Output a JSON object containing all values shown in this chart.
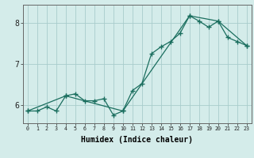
{
  "title": "",
  "xlabel": "Humidex (Indice chaleur)",
  "ylabel": "",
  "bg_color": "#d4ecea",
  "grid_color": "#a8cccc",
  "line_color": "#1a6e5e",
  "xlim": [
    -0.5,
    23.5
  ],
  "ylim": [
    5.55,
    8.45
  ],
  "yticks": [
    6,
    7,
    8
  ],
  "xticks": [
    0,
    1,
    2,
    3,
    4,
    5,
    6,
    7,
    8,
    9,
    10,
    11,
    12,
    13,
    14,
    15,
    16,
    17,
    18,
    19,
    20,
    21,
    22,
    23
  ],
  "series1_x": [
    0,
    1,
    2,
    3,
    4,
    5,
    6,
    7,
    8,
    9,
    10,
    11,
    12,
    13,
    14,
    15,
    16,
    17,
    18,
    19,
    20,
    21,
    22,
    23
  ],
  "series1_y": [
    5.85,
    5.85,
    5.95,
    5.85,
    6.22,
    6.27,
    6.1,
    6.1,
    6.15,
    5.75,
    5.85,
    6.35,
    6.52,
    7.25,
    7.42,
    7.55,
    7.75,
    8.18,
    8.05,
    7.9,
    8.05,
    7.65,
    7.55,
    7.45
  ],
  "series2_x": [
    0,
    4,
    10,
    17,
    20,
    23
  ],
  "series2_y": [
    5.85,
    6.22,
    5.85,
    8.18,
    8.05,
    7.45
  ],
  "marker_size": 4,
  "marker": "D",
  "linewidth": 0.9
}
